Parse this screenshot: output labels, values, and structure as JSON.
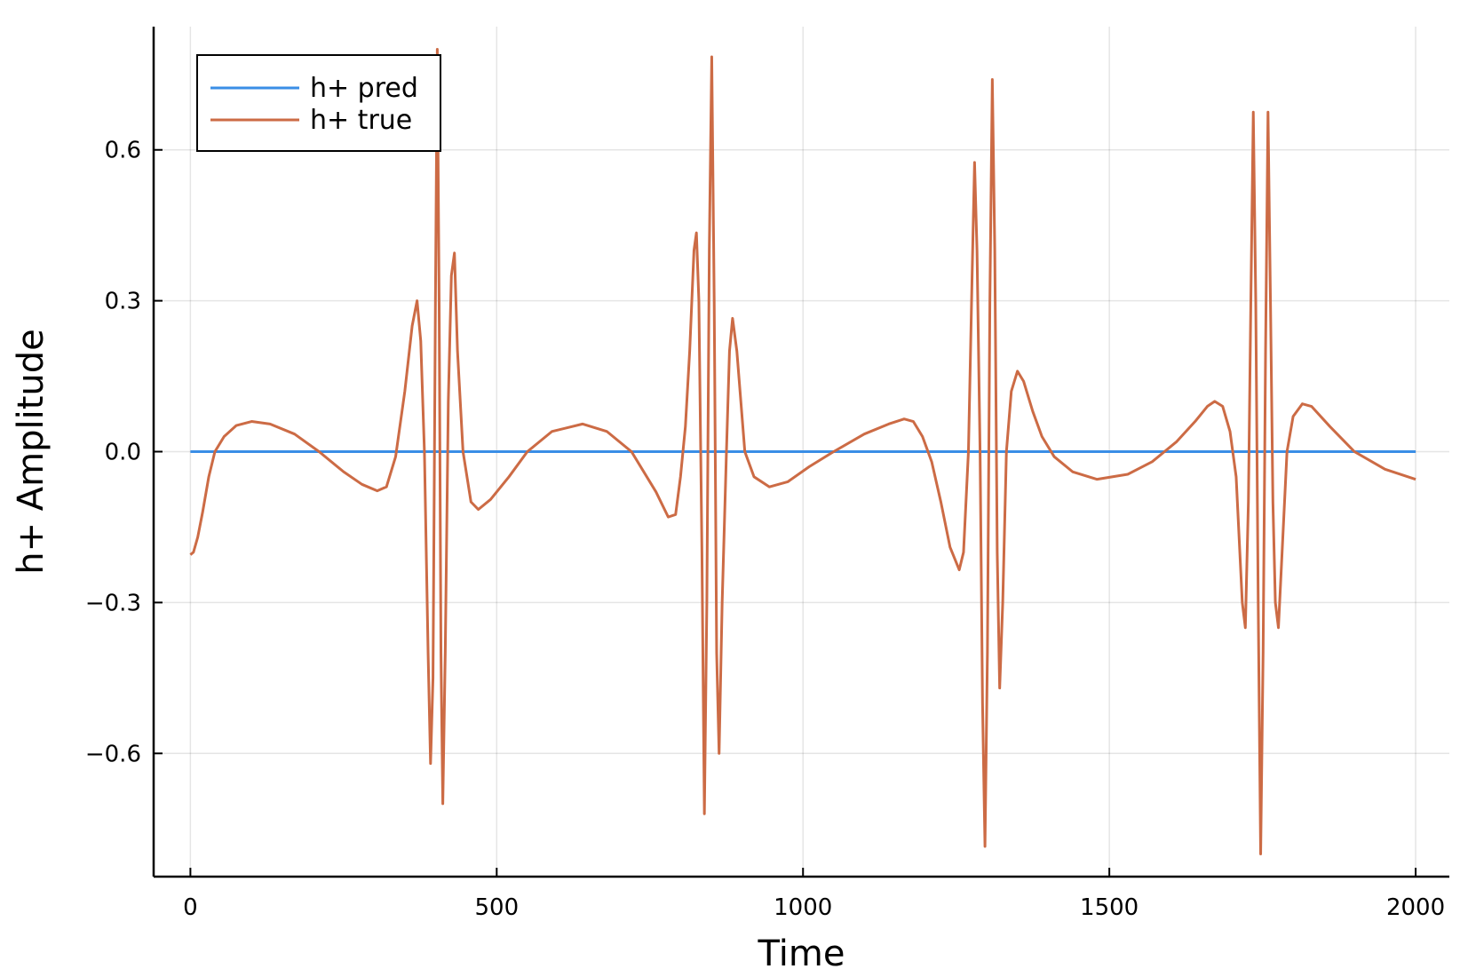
{
  "chart_data": {
    "type": "line",
    "title": "",
    "xlabel": "Time",
    "ylabel": "h+ Amplitude",
    "xlim": [
      -60,
      2055
    ],
    "ylim": [
      -0.845,
      0.845
    ],
    "xticks": [
      0,
      500,
      1000,
      1500,
      2000
    ],
    "xtick_labels": [
      "0",
      "500",
      "1000",
      "1500",
      "2000"
    ],
    "yticks": [
      -0.6,
      -0.3,
      0.0,
      0.3,
      0.6
    ],
    "ytick_labels": [
      "−0.6",
      "−0.3",
      "0.0",
      "0.3",
      "0.6"
    ],
    "grid": true,
    "legend_position": "top-left",
    "series": [
      {
        "name": "h+ pred",
        "color": "#3a8ee6",
        "points": [
          [
            0,
            0.0
          ],
          [
            2000,
            0.0
          ]
        ]
      },
      {
        "name": "h+ true",
        "color": "#cc6b45",
        "points": [
          [
            0,
            -0.205
          ],
          [
            5,
            -0.2
          ],
          [
            12,
            -0.17
          ],
          [
            20,
            -0.12
          ],
          [
            30,
            -0.05
          ],
          [
            40,
            0.0
          ],
          [
            55,
            0.03
          ],
          [
            75,
            0.052
          ],
          [
            100,
            0.06
          ],
          [
            130,
            0.055
          ],
          [
            170,
            0.035
          ],
          [
            210,
            0.0
          ],
          [
            250,
            -0.04
          ],
          [
            280,
            -0.065
          ],
          [
            305,
            -0.078
          ],
          [
            320,
            -0.07
          ],
          [
            335,
            -0.01
          ],
          [
            350,
            0.12
          ],
          [
            362,
            0.25
          ],
          [
            370,
            0.3
          ],
          [
            376,
            0.22
          ],
          [
            382,
            0.0
          ],
          [
            388,
            -0.4
          ],
          [
            392,
            -0.62
          ],
          [
            396,
            -0.45
          ],
          [
            400,
            0.3
          ],
          [
            403,
            0.8
          ],
          [
            406,
            0.3
          ],
          [
            409,
            -0.4
          ],
          [
            412,
            -0.7
          ],
          [
            416,
            -0.4
          ],
          [
            421,
            0.1
          ],
          [
            426,
            0.35
          ],
          [
            431,
            0.395
          ],
          [
            436,
            0.2
          ],
          [
            445,
            0.0
          ],
          [
            458,
            -0.1
          ],
          [
            470,
            -0.115
          ],
          [
            490,
            -0.095
          ],
          [
            520,
            -0.05
          ],
          [
            550,
            0.0
          ],
          [
            590,
            0.04
          ],
          [
            640,
            0.055
          ],
          [
            680,
            0.04
          ],
          [
            720,
            0.0
          ],
          [
            760,
            -0.08
          ],
          [
            780,
            -0.13
          ],
          [
            792,
            -0.125
          ],
          [
            800,
            -0.05
          ],
          [
            808,
            0.05
          ],
          [
            815,
            0.2
          ],
          [
            822,
            0.4
          ],
          [
            826,
            0.435
          ],
          [
            830,
            0.3
          ],
          [
            835,
            -0.2
          ],
          [
            839,
            -0.72
          ],
          [
            843,
            -0.3
          ],
          [
            847,
            0.4
          ],
          [
            851,
            0.785
          ],
          [
            855,
            0.3
          ],
          [
            859,
            -0.4
          ],
          [
            863,
            -0.6
          ],
          [
            868,
            -0.3
          ],
          [
            875,
            0.0
          ],
          [
            880,
            0.2
          ],
          [
            885,
            0.265
          ],
          [
            892,
            0.2
          ],
          [
            905,
            0.0
          ],
          [
            920,
            -0.05
          ],
          [
            945,
            -0.07
          ],
          [
            975,
            -0.06
          ],
          [
            1010,
            -0.03
          ],
          [
            1050,
            0.0
          ],
          [
            1100,
            0.035
          ],
          [
            1140,
            0.055
          ],
          [
            1165,
            0.065
          ],
          [
            1180,
            0.06
          ],
          [
            1195,
            0.03
          ],
          [
            1210,
            -0.02
          ],
          [
            1225,
            -0.1
          ],
          [
            1240,
            -0.19
          ],
          [
            1255,
            -0.235
          ],
          [
            1262,
            -0.2
          ],
          [
            1270,
            0.0
          ],
          [
            1276,
            0.35
          ],
          [
            1280,
            0.575
          ],
          [
            1284,
            0.4
          ],
          [
            1289,
            0.0
          ],
          [
            1293,
            -0.5
          ],
          [
            1297,
            -0.785
          ],
          [
            1301,
            -0.4
          ],
          [
            1305,
            0.3
          ],
          [
            1309,
            0.74
          ],
          [
            1313,
            0.4
          ],
          [
            1317,
            -0.2
          ],
          [
            1321,
            -0.47
          ],
          [
            1326,
            -0.3
          ],
          [
            1332,
            0.0
          ],
          [
            1340,
            0.12
          ],
          [
            1350,
            0.16
          ],
          [
            1360,
            0.14
          ],
          [
            1375,
            0.08
          ],
          [
            1390,
            0.03
          ],
          [
            1410,
            -0.01
          ],
          [
            1440,
            -0.04
          ],
          [
            1480,
            -0.055
          ],
          [
            1530,
            -0.045
          ],
          [
            1570,
            -0.02
          ],
          [
            1610,
            0.02
          ],
          [
            1640,
            0.06
          ],
          [
            1660,
            0.09
          ],
          [
            1672,
            0.1
          ],
          [
            1685,
            0.09
          ],
          [
            1697,
            0.04
          ],
          [
            1707,
            -0.05
          ],
          [
            1713,
            -0.2
          ],
          [
            1717,
            -0.3
          ],
          [
            1722,
            -0.35
          ],
          [
            1727,
            -0.1
          ],
          [
            1731,
            0.3
          ],
          [
            1735,
            0.675
          ],
          [
            1739,
            0.3
          ],
          [
            1743,
            -0.3
          ],
          [
            1747,
            -0.8
          ],
          [
            1751,
            -0.4
          ],
          [
            1755,
            0.2
          ],
          [
            1759,
            0.675
          ],
          [
            1763,
            0.3
          ],
          [
            1767,
            -0.1
          ],
          [
            1771,
            -0.3
          ],
          [
            1776,
            -0.35
          ],
          [
            1782,
            -0.2
          ],
          [
            1790,
            0.0
          ],
          [
            1800,
            0.07
          ],
          [
            1815,
            0.095
          ],
          [
            1830,
            0.09
          ],
          [
            1860,
            0.05
          ],
          [
            1900,
            0.0
          ],
          [
            1950,
            -0.035
          ],
          [
            2000,
            -0.055
          ]
        ]
      }
    ]
  }
}
